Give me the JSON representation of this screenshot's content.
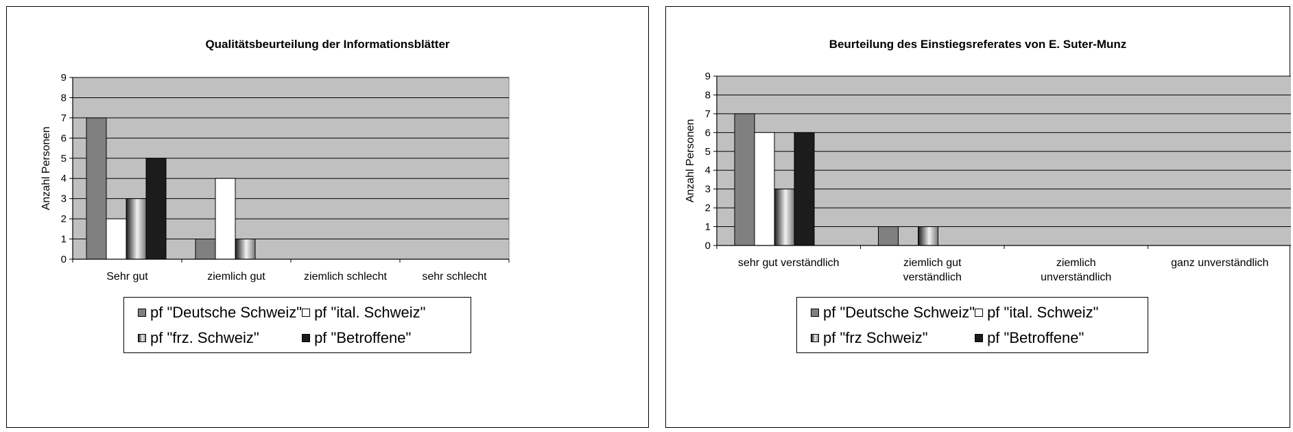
{
  "chart_data": [
    {
      "type": "bar",
      "title": "Qualitätsbeurteilung der Informationsblätter",
      "ylabel": "Anzahl Personen",
      "ylim": [
        0,
        9
      ],
      "yticks": [
        0,
        1,
        2,
        3,
        4,
        5,
        6,
        7,
        8,
        9
      ],
      "grid": true,
      "legend_position": "bottom",
      "categories": [
        [
          "Sehr gut"
        ],
        [
          "ziemlich gut"
        ],
        [
          "ziemlich schlecht"
        ],
        [
          "sehr schlecht"
        ]
      ],
      "series": [
        {
          "name": "pf \"Deutsche Schweiz\"",
          "values": [
            7,
            1,
            0,
            0
          ],
          "color": "#808080"
        },
        {
          "name": "pf \"ital. Schweiz\"",
          "values": [
            2,
            4,
            0,
            0
          ],
          "color": "#ffffff"
        },
        {
          "name": "pf \"frz. Schweiz\"",
          "values": [
            3,
            1,
            0,
            0
          ],
          "color": "gradient"
        },
        {
          "name": "pf \"Betroffene\"",
          "values": [
            5,
            0,
            0,
            0
          ],
          "color": "#1c1c1c"
        }
      ]
    },
    {
      "type": "bar",
      "title": "Beurteilung des Einstiegsreferates von E. Suter-Munz",
      "ylabel": "Anzahl Personen",
      "ylim": [
        0,
        9
      ],
      "yticks": [
        0,
        1,
        2,
        3,
        4,
        5,
        6,
        7,
        8,
        9
      ],
      "grid": true,
      "legend_position": "bottom",
      "categories": [
        [
          "sehr gut verständlich"
        ],
        [
          "ziemlich gut",
          "verständlich"
        ],
        [
          "ziemlich",
          "unverständlich"
        ],
        [
          "ganz unverständlich"
        ]
      ],
      "series": [
        {
          "name": "pf \"Deutsche Schweiz\"",
          "values": [
            7,
            1,
            0,
            0
          ],
          "color": "#808080"
        },
        {
          "name": "pf \"ital. Schweiz\"",
          "values": [
            6,
            0,
            0,
            0
          ],
          "color": "#ffffff"
        },
        {
          "name": "pf \"frz Schweiz\"",
          "values": [
            3,
            1,
            0,
            0
          ],
          "color": "gradient"
        },
        {
          "name": "pf \"Betroffene\"",
          "values": [
            6,
            0,
            0,
            0
          ],
          "color": "#1c1c1c"
        }
      ]
    }
  ],
  "colors": {
    "plot_background": "#c0c0c0",
    "gridline": "#000000"
  }
}
